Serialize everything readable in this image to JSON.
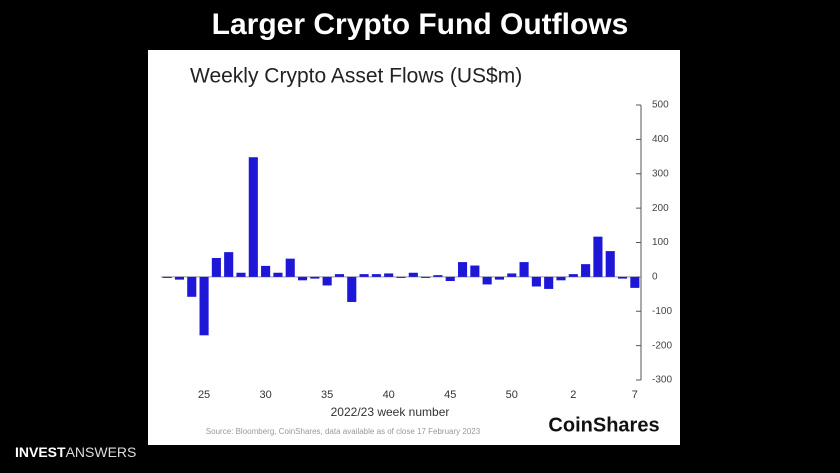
{
  "header": {
    "title": "Larger Crypto Fund Outflows"
  },
  "chart_data": {
    "type": "bar",
    "title": "Weekly Crypto Asset Flows (US$m)",
    "x_label": "2022/23 week number",
    "source": "Source: Bloomberg, CoinShares, data available as of close 17 February 2023",
    "logo": "CoinShares",
    "color": "#1e17d8",
    "categories": [
      null,
      null,
      null,
      "25",
      null,
      null,
      null,
      null,
      "30",
      null,
      null,
      null,
      null,
      "35",
      null,
      null,
      null,
      null,
      "40",
      null,
      null,
      null,
      null,
      "45",
      null,
      null,
      null,
      null,
      "50",
      null,
      null,
      null,
      null,
      "2",
      null,
      null,
      null,
      null,
      "7"
    ],
    "values": [
      -3,
      -8,
      -58,
      -170,
      55,
      72,
      12,
      348,
      32,
      12,
      53,
      -10,
      -5,
      -25,
      8,
      -73,
      8,
      8,
      10,
      -3,
      12,
      -3,
      5,
      -12,
      43,
      33,
      -22,
      -8,
      10,
      43,
      -28,
      -35,
      -10,
      8,
      37,
      117,
      75,
      -5,
      -32
    ],
    "ylim": [
      -300,
      500
    ],
    "yticks": [
      500,
      400,
      300,
      200,
      100,
      0,
      -100,
      -200,
      -300
    ],
    "axis_side": "right"
  },
  "branding": {
    "bold": "INVEST",
    "light": "ANSWERS"
  }
}
